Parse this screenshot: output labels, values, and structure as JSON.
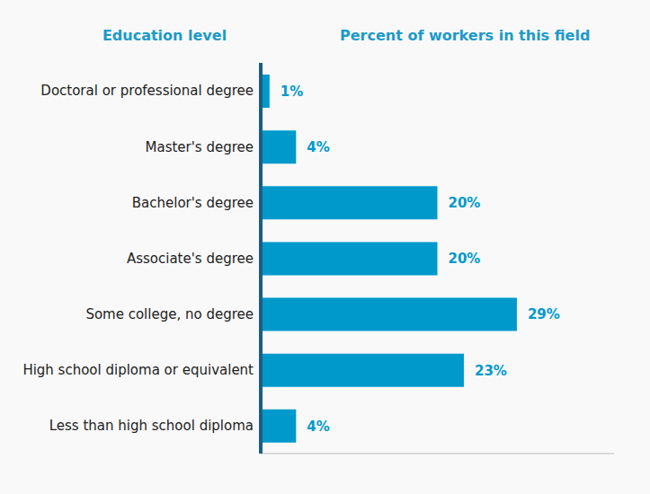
{
  "chart_data": {
    "type": "bar",
    "orientation": "horizontal",
    "y_label": "Education level",
    "x_label": "Percent of workers in this field",
    "categories": [
      "Doctoral or professional degree",
      "Master's degree",
      "Bachelor's degree",
      "Associate's degree",
      "Some college, no degree",
      "High school diploma or equivalent",
      "Less than high school diploma"
    ],
    "values": [
      1,
      4,
      20,
      20,
      29,
      23,
      4
    ],
    "value_labels": [
      "1%",
      "4%",
      "20%",
      "20%",
      "29%",
      "23%",
      "4%"
    ],
    "color": "#0099cc",
    "xlim": [
      0,
      40
    ],
    "data_labels": true,
    "tick_labels": "y",
    "grid": false
  }
}
